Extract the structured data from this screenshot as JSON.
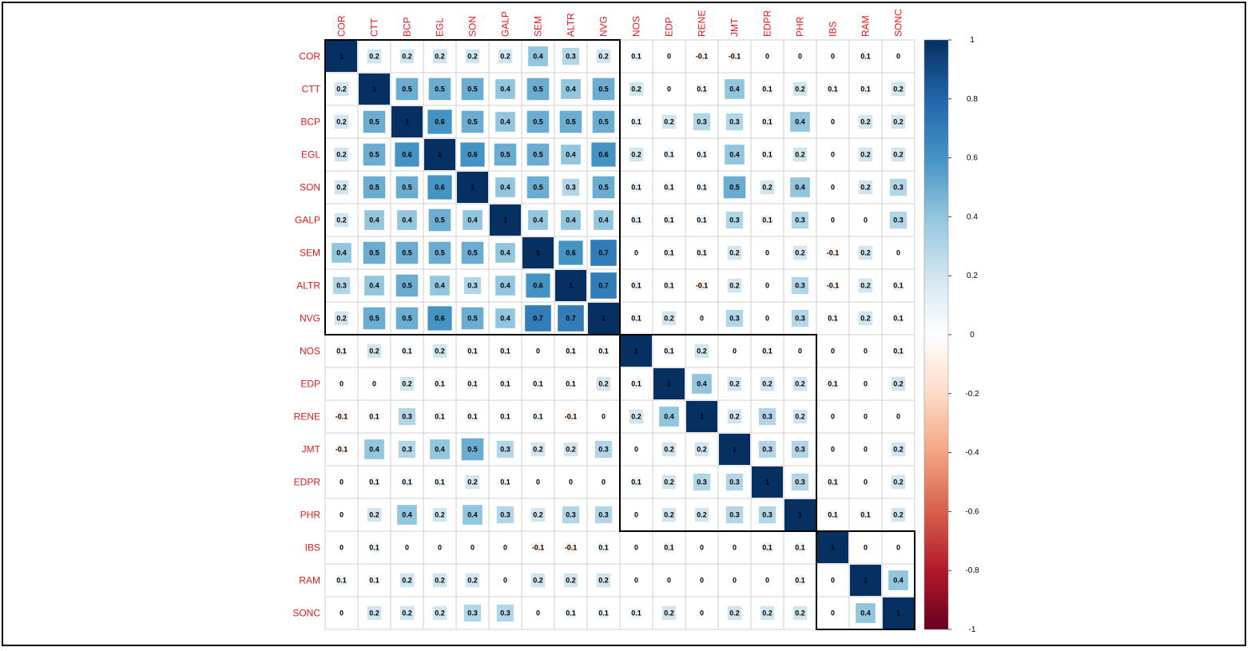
{
  "chart_data": {
    "type": "heatmap",
    "variables": [
      "COR",
      "CTT",
      "BCP",
      "EGL",
      "SON",
      "GALP",
      "SEM",
      "ALTR",
      "NVG",
      "NOS",
      "EDP",
      "RENE",
      "JMT",
      "EDPR",
      "PHR",
      "IBS",
      "RAM",
      "SONC"
    ],
    "matrix": [
      [
        1,
        0.2,
        0.2,
        0.2,
        0.2,
        0.2,
        0.4,
        0.3,
        0.2,
        0.1,
        0,
        -0.1,
        -0.1,
        0,
        0,
        0,
        0.1,
        0
      ],
      [
        0.2,
        1,
        0.5,
        0.5,
        0.5,
        0.4,
        0.5,
        0.4,
        0.5,
        0.2,
        0,
        0.1,
        0.4,
        0.1,
        0.2,
        0.1,
        0.1,
        0.2
      ],
      [
        0.2,
        0.5,
        1,
        0.6,
        0.5,
        0.4,
        0.5,
        0.5,
        0.5,
        0.1,
        0.2,
        0.3,
        0.3,
        0.1,
        0.4,
        0,
        0.2,
        0.2
      ],
      [
        0.2,
        0.5,
        0.6,
        1,
        0.6,
        0.5,
        0.5,
        0.4,
        0.6,
        0.2,
        0.1,
        0.1,
        0.4,
        0.1,
        0.2,
        0,
        0.2,
        0.2
      ],
      [
        0.2,
        0.5,
        0.5,
        0.6,
        1,
        0.4,
        0.5,
        0.3,
        0.5,
        0.1,
        0.1,
        0.1,
        0.5,
        0.2,
        0.4,
        0,
        0.2,
        0.3
      ],
      [
        0.2,
        0.4,
        0.4,
        0.5,
        0.4,
        1,
        0.4,
        0.4,
        0.4,
        0.1,
        0.1,
        0.1,
        0.3,
        0.1,
        0.3,
        0,
        0,
        0.3
      ],
      [
        0.4,
        0.5,
        0.5,
        0.5,
        0.5,
        0.4,
        1,
        0.6,
        0.7,
        0,
        0.1,
        0.1,
        0.2,
        0,
        0.2,
        -0.1,
        0.2,
        0
      ],
      [
        0.3,
        0.4,
        0.5,
        0.4,
        0.3,
        0.4,
        0.6,
        1,
        0.7,
        0.1,
        0.1,
        -0.1,
        0.2,
        0,
        0.3,
        -0.1,
        0.2,
        0.1
      ],
      [
        0.2,
        0.5,
        0.5,
        0.6,
        0.5,
        0.4,
        0.7,
        0.7,
        1,
        0.1,
        0.2,
        0,
        0.3,
        0,
        0.3,
        0.1,
        0.2,
        0.1
      ],
      [
        0.1,
        0.2,
        0.1,
        0.2,
        0.1,
        0.1,
        0,
        0.1,
        0.1,
        1,
        0.1,
        0.2,
        0,
        0.1,
        0,
        0,
        0,
        0.1
      ],
      [
        0,
        0,
        0.2,
        0.1,
        0.1,
        0.1,
        0.1,
        0.1,
        0.2,
        0.1,
        1,
        0.4,
        0.2,
        0.2,
        0.2,
        0.1,
        0,
        0.2
      ],
      [
        -0.1,
        0.1,
        0.3,
        0.1,
        0.1,
        0.1,
        0.1,
        -0.1,
        0,
        0.2,
        0.4,
        1,
        0.2,
        0.3,
        0.2,
        0,
        0,
        0
      ],
      [
        -0.1,
        0.4,
        0.3,
        0.4,
        0.5,
        0.3,
        0.2,
        0.2,
        0.3,
        0,
        0.2,
        0.2,
        1,
        0.3,
        0.3,
        0,
        0,
        0.2
      ],
      [
        0,
        0.1,
        0.1,
        0.1,
        0.2,
        0.1,
        0,
        0,
        0,
        0.1,
        0.2,
        0.3,
        0.3,
        1,
        0.3,
        0.1,
        0,
        0.2
      ],
      [
        0,
        0.2,
        0.4,
        0.2,
        0.4,
        0.3,
        0.2,
        0.3,
        0.3,
        0,
        0.2,
        0.2,
        0.3,
        0.3,
        1,
        0.1,
        0.1,
        0.2
      ],
      [
        0,
        0.1,
        0,
        0,
        0,
        0,
        -0.1,
        -0.1,
        0.1,
        0,
        0.1,
        0,
        0,
        0.1,
        0.1,
        1,
        0,
        0
      ],
      [
        0.1,
        0.1,
        0.2,
        0.2,
        0.2,
        0,
        0.2,
        0.2,
        0.2,
        0,
        0,
        0,
        0,
        0,
        0.1,
        0,
        1,
        0.4
      ],
      [
        0,
        0.2,
        0.2,
        0.2,
        0.3,
        0.3,
        0,
        0.1,
        0.1,
        0.1,
        0.2,
        0,
        0.2,
        0.2,
        0.2,
        0,
        0.4,
        1
      ]
    ],
    "clusters": [
      [
        0,
        8
      ],
      [
        9,
        14
      ],
      [
        15,
        17
      ]
    ],
    "colorbar": {
      "range": [
        -1,
        1
      ],
      "ticks": [
        "1",
        "0.8",
        "0.6",
        "0.4",
        "0.2",
        "0",
        "-0.2",
        "-0.4",
        "-0.6",
        "-0.8",
        "-1"
      ],
      "colors": [
        "#67001F",
        "#B2182B",
        "#D6604D",
        "#F4A582",
        "#FDDBC7",
        "#FFFFFF",
        "#D1E5F0",
        "#92C5DE",
        "#4393C3",
        "#2166AC",
        "#053061"
      ]
    },
    "label_color": "#e41a1c",
    "grid": true,
    "legend_position": "right"
  }
}
